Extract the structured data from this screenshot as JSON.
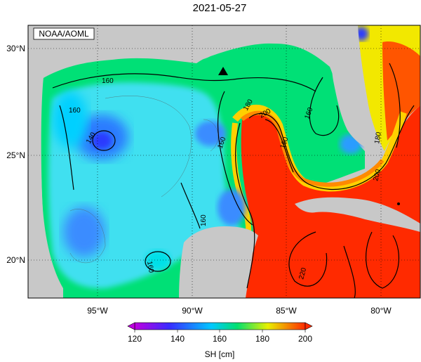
{
  "title": "2021-05-27",
  "credit": "NOAA/AOML",
  "map": {
    "lon_ticks": [
      "95°W",
      "90°W",
      "85°W",
      "80°W"
    ],
    "lat_ticks": [
      "30°N",
      "25°N",
      "20°N"
    ],
    "contour_labels": [
      "160",
      "140",
      "160",
      "160",
      "180",
      "200",
      "160",
      "160",
      "180",
      "200",
      "160",
      "220",
      "200"
    ],
    "marker": "buoy-triangle"
  },
  "colorbar": {
    "label": "SH [cm]",
    "ticks": [
      "120",
      "140",
      "160",
      "180",
      "200"
    ],
    "range": [
      120,
      200
    ],
    "colors": [
      "#b000d0",
      "#2a2aff",
      "#00c8ff",
      "#00e060",
      "#e8f000",
      "#ff2a00"
    ]
  }
}
